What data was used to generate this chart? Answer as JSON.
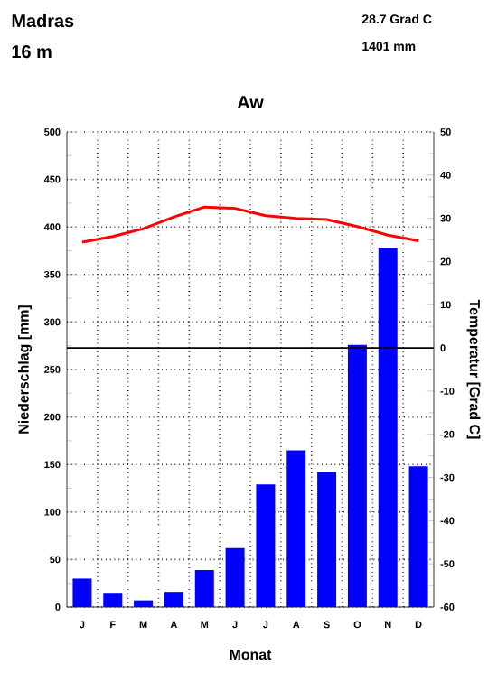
{
  "chart_data": {
    "type": "bar",
    "title": "Madras",
    "subtitle": "16 m",
    "xlabel": "Monat",
    "ylabel": "Niederschlag [mm]",
    "y2label": "Temperatur [Grad C]",
    "annotations": [
      "28.7 Grad C",
      "1401 mm",
      "Aw"
    ],
    "categories": [
      "J",
      "F",
      "M",
      "A",
      "M",
      "J",
      "J",
      "A",
      "S",
      "O",
      "N",
      "D"
    ],
    "series": [
      {
        "color": "#0000ff",
        "values": [
          30,
          15,
          7,
          16,
          39,
          62,
          129,
          165,
          142,
          276,
          378,
          148
        ]
      },
      {
        "type": "line",
        "axis": "y2",
        "color": "#ff0000",
        "values": [
          24.5,
          25.8,
          27.6,
          30.3,
          32.6,
          32.3,
          30.6,
          30.0,
          29.7,
          28.1,
          26.1,
          24.8
        ]
      }
    ],
    "ylim": [
      0,
      500
    ],
    "yticks": [
      0,
      50,
      100,
      150,
      200,
      250,
      300,
      350,
      400,
      450,
      500
    ],
    "y2lim": [
      -60,
      50
    ],
    "y2ticks": [
      -60,
      -50,
      -40,
      -30,
      -20,
      -10,
      0,
      10,
      20,
      30,
      40,
      50
    ],
    "ref_lines": [
      {
        "axis": "y2",
        "value": 0,
        "color": "#000000",
        "line_style": "solid"
      }
    ],
    "grid": true,
    "marker": "none",
    "line_style": "solid"
  }
}
